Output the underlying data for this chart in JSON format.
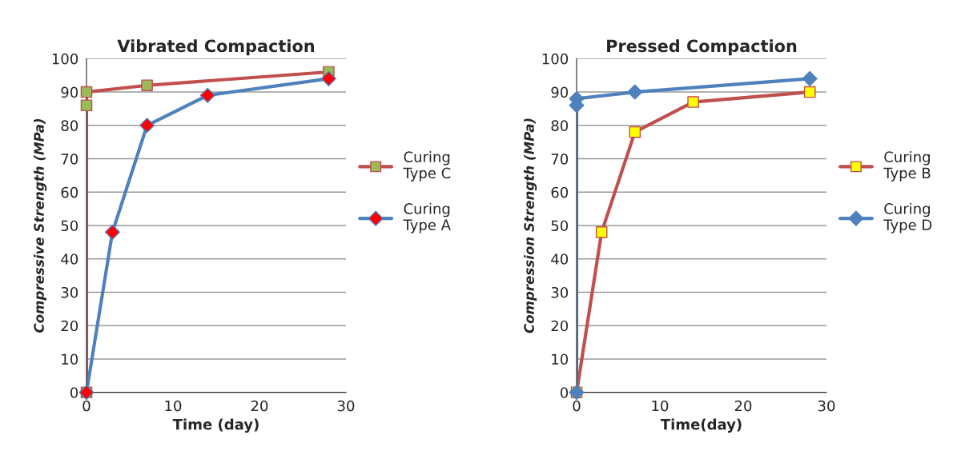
{
  "chart_data": [
    {
      "type": "line",
      "title": "Vibrated Compaction",
      "xlabel": "Time (day)",
      "ylabel": "Compressive Strength (MPa)",
      "xlim": [
        0,
        30
      ],
      "xticks": [
        0,
        10,
        20,
        30
      ],
      "ylim": [
        0,
        100
      ],
      "yticks": [
        0,
        10,
        20,
        30,
        40,
        50,
        60,
        70,
        80,
        90,
        100
      ],
      "grid": "y",
      "legend": "right",
      "series": [
        {
          "name": "Curing\nType C",
          "color": "#c0504d",
          "colors": [
            "#9bbb59",
            "#9bbb59",
            "#9bbb59",
            "#9bbb59",
            "#9bbb59"
          ],
          "marker": "square",
          "x": [
            0,
            0,
            0,
            7,
            28
          ],
          "values": [
            0,
            86,
            90,
            92,
            96
          ]
        },
        {
          "name": "Curing\nType A",
          "color": "#4f81bd",
          "colors": [
            "#ff0000",
            "#ff0000",
            "#ff0000",
            "#ff0000",
            "#ff0000"
          ],
          "marker": "diamond",
          "x": [
            0,
            3,
            7,
            14,
            28
          ],
          "values": [
            0,
            48,
            80,
            89,
            94
          ]
        }
      ]
    },
    {
      "type": "line",
      "title": "Pressed Compaction",
      "xlabel": "Time(day)",
      "ylabel": "Compression Strength (MPa)",
      "xlim": [
        0,
        30
      ],
      "xticks": [
        0,
        10,
        20,
        30
      ],
      "ylim": [
        0,
        100
      ],
      "yticks": [
        0,
        10,
        20,
        30,
        40,
        50,
        60,
        70,
        80,
        90,
        100
      ],
      "grid": "y",
      "legend": "right",
      "series": [
        {
          "name": "Curing\nType B",
          "color": "#c0504d",
          "colors": [
            "#ffff00",
            "#ffff00",
            "#ffff00",
            "#ffff00",
            "#ffff00"
          ],
          "marker": "square",
          "x": [
            0,
            3,
            7,
            14,
            28
          ],
          "values": [
            0,
            48,
            78,
            87,
            90
          ]
        },
        {
          "name": "Curing\nType D",
          "color": "#4f81bd",
          "colors": [
            "#4f81bd",
            "#4f81bd",
            "#4f81bd",
            "#4f81bd",
            "#4f81bd"
          ],
          "marker": "diamond",
          "x": [
            0,
            0,
            0,
            7,
            28
          ],
          "values": [
            0,
            86,
            88,
            90,
            94
          ]
        }
      ]
    }
  ]
}
